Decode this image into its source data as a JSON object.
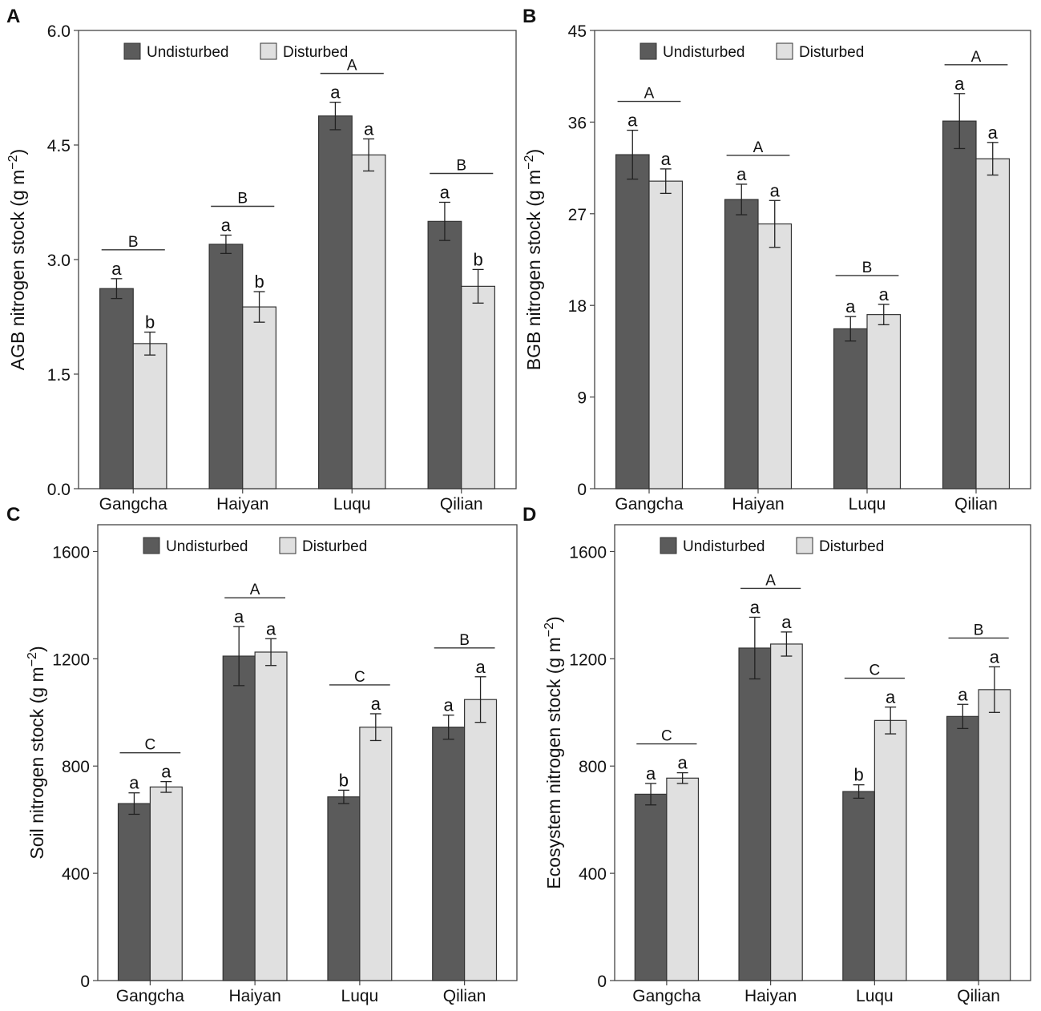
{
  "chart_data": [
    {
      "type": "bar",
      "panel_label": "A",
      "ylabel": "AGB nitrogen stock",
      "ylabel_unit_base": "(g m",
      "ylabel_unit_exp": "−2",
      "ylabel_unit_close": ")",
      "ylim": [
        0,
        6.0
      ],
      "yticks": [
        "0.0",
        "1.5",
        "3.0",
        "4.5",
        "6.0"
      ],
      "ytick_values": [
        0,
        1.5,
        3.0,
        4.5,
        6.0
      ],
      "categories": [
        "Gangcha",
        "Haiyan",
        "Luqu",
        "Qilian"
      ],
      "series": [
        {
          "name": "Undisturbed",
          "color": "#5b5b5b",
          "values": [
            2.62,
            3.2,
            4.88,
            3.5
          ],
          "errors": [
            0.13,
            0.12,
            0.18,
            0.25
          ],
          "letters": [
            "a",
            "a",
            "a",
            "a"
          ]
        },
        {
          "name": "Disturbed",
          "color": "#e0e0e0",
          "values": [
            1.9,
            2.38,
            4.37,
            2.65
          ],
          "errors": [
            0.15,
            0.2,
            0.21,
            0.22
          ],
          "letters": [
            "b",
            "b",
            "a",
            "b"
          ]
        }
      ],
      "group_letters": [
        "B",
        "B",
        "A",
        "B"
      ],
      "legend": [
        "Undisturbed",
        "Disturbed"
      ]
    },
    {
      "type": "bar",
      "panel_label": "B",
      "ylabel": "BGB nitrogen stock",
      "ylabel_unit_base": "(g m",
      "ylabel_unit_exp": "−2",
      "ylabel_unit_close": ")",
      "ylim": [
        0,
        45
      ],
      "yticks": [
        "0",
        "9",
        "18",
        "27",
        "36",
        "45"
      ],
      "ytick_values": [
        0,
        9,
        18,
        27,
        36,
        45
      ],
      "categories": [
        "Gangcha",
        "Haiyan",
        "Luqu",
        "Qilian"
      ],
      "series": [
        {
          "name": "Undisturbed",
          "color": "#5b5b5b",
          "values": [
            32.8,
            28.4,
            15.7,
            36.1
          ],
          "errors": [
            2.4,
            1.5,
            1.2,
            2.7
          ],
          "letters": [
            "a",
            "a",
            "a",
            "a"
          ]
        },
        {
          "name": "Disturbed",
          "color": "#e0e0e0",
          "values": [
            30.2,
            26.0,
            17.1,
            32.4
          ],
          "errors": [
            1.2,
            2.3,
            1.0,
            1.6
          ],
          "letters": [
            "a",
            "a",
            "a",
            "a"
          ]
        }
      ],
      "group_letters": [
        "A",
        "A",
        "B",
        "A"
      ],
      "legend": [
        "Undisturbed",
        "Disturbed"
      ]
    },
    {
      "type": "bar",
      "panel_label": "C",
      "ylabel": "Soil nitrogen stock",
      "ylabel_unit_base": "(g m",
      "ylabel_unit_exp": "−2",
      "ylabel_unit_close": ")",
      "ylim": [
        0,
        1700
      ],
      "yticks": [
        "0",
        "400",
        "800",
        "1200",
        "1600"
      ],
      "ytick_values": [
        0,
        400,
        800,
        1200,
        1600
      ],
      "categories": [
        "Gangcha",
        "Haiyan",
        "Luqu",
        "Qilian"
      ],
      "series": [
        {
          "name": "Undisturbed",
          "color": "#5b5b5b",
          "values": [
            660,
            1210,
            685,
            945
          ],
          "errors": [
            40,
            110,
            25,
            45
          ],
          "letters": [
            "a",
            "a",
            "b",
            "a"
          ]
        },
        {
          "name": "Disturbed",
          "color": "#e0e0e0",
          "values": [
            722,
            1225,
            945,
            1048
          ],
          "errors": [
            20,
            50,
            50,
            85
          ],
          "letters": [
            "a",
            "a",
            "a",
            "a"
          ]
        }
      ],
      "group_letters": [
        "C",
        "A",
        "C",
        "B"
      ],
      "legend": [
        "Undisturbed",
        "Disturbed"
      ]
    },
    {
      "type": "bar",
      "panel_label": "D",
      "ylabel": "Ecosystem nitrogen stock",
      "ylabel_unit_base": "(g m",
      "ylabel_unit_exp": "−2",
      "ylabel_unit_close": ")",
      "ylim": [
        0,
        1700
      ],
      "yticks": [
        "0",
        "400",
        "800",
        "1200",
        "1600"
      ],
      "ytick_values": [
        0,
        400,
        800,
        1200,
        1600
      ],
      "categories": [
        "Gangcha",
        "Haiyan",
        "Luqu",
        "Qilian"
      ],
      "series": [
        {
          "name": "Undisturbed",
          "color": "#5b5b5b",
          "values": [
            695,
            1240,
            705,
            985
          ],
          "errors": [
            40,
            115,
            25,
            45
          ],
          "letters": [
            "a",
            "a",
            "b",
            "a"
          ]
        },
        {
          "name": "Disturbed",
          "color": "#e0e0e0",
          "values": [
            755,
            1255,
            970,
            1085
          ],
          "errors": [
            20,
            45,
            50,
            85
          ],
          "letters": [
            "a",
            "a",
            "a",
            "a"
          ]
        }
      ],
      "group_letters": [
        "C",
        "A",
        "C",
        "B"
      ],
      "legend": [
        "Undisturbed",
        "Disturbed"
      ]
    }
  ]
}
